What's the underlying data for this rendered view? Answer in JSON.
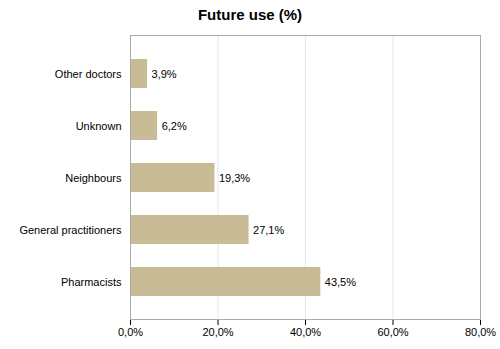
{
  "chart_data": {
    "type": "bar",
    "orientation": "horizontal",
    "title": "Future use (%)",
    "categories": [
      "Pharmacists",
      "General practitioners",
      "Neighbours",
      "Unknown",
      "Other doctors"
    ],
    "values": [
      43.5,
      27.1,
      19.3,
      6.2,
      3.9
    ],
    "value_labels": [
      "43,5%",
      "27,1%",
      "19,3%",
      "6,2%",
      "3,9%"
    ],
    "data_labels": true,
    "color": "#c8bc96",
    "xlim": [
      0,
      80
    ],
    "xticks": [
      {
        "value": 0,
        "label": "0,0%"
      },
      {
        "value": 20,
        "label": "20,0%"
      },
      {
        "value": 40,
        "label": "40,0%"
      },
      {
        "value": 60,
        "label": "60,0%"
      },
      {
        "value": 80,
        "label": "80,0%"
      }
    ],
    "grid": true
  }
}
